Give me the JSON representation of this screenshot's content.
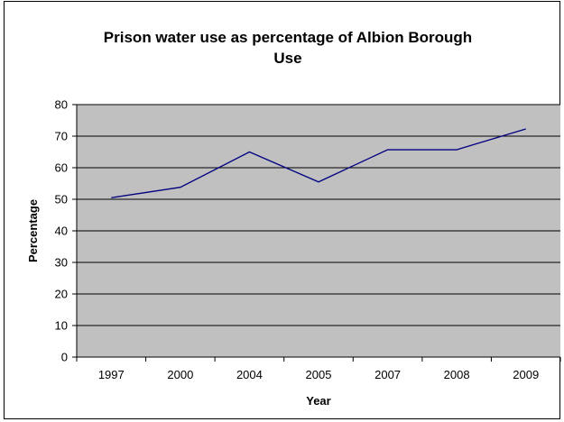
{
  "chart_data": {
    "type": "line",
    "title_line1": "Prison water use as percentage of Albion Borough",
    "title_line2": "Use",
    "xlabel": "Year",
    "ylabel": "Percentage",
    "categories": [
      "1997",
      "2000",
      "2004",
      "2005",
      "2007",
      "2008",
      "2009"
    ],
    "series": [
      {
        "values": [
          50.5,
          53.8,
          65.0,
          55.5,
          65.7,
          65.7,
          72.3
        ],
        "color": "#000080"
      }
    ],
    "ylim": [
      0,
      80
    ],
    "yticks": [
      "0",
      "10",
      "20",
      "30",
      "40",
      "50",
      "60",
      "70",
      "80"
    ],
    "grid": true,
    "plot_background": "#c0c0c0",
    "gridline_color": "#000000",
    "legend": "none"
  }
}
